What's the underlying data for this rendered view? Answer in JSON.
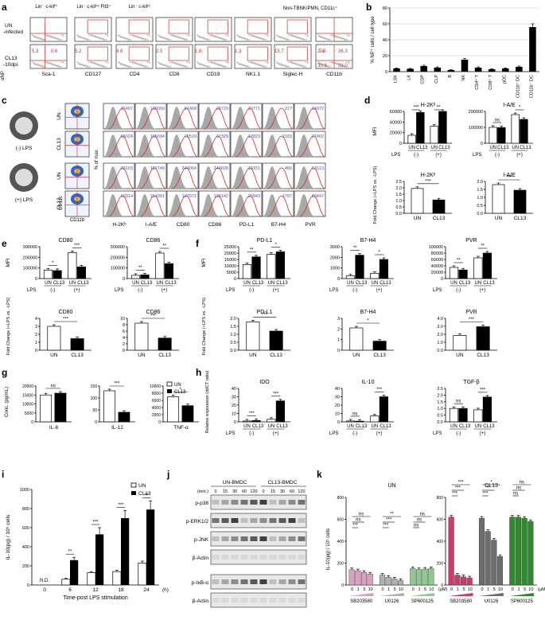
{
  "panel_labels": [
    "a",
    "b",
    "c",
    "d",
    "e",
    "f",
    "g",
    "h",
    "i",
    "j",
    "k"
  ],
  "colors": {
    "accent_red": "#d42a1e",
    "blue_num": "#4a4fb5",
    "hist_fill": "#a8a8a8",
    "k_un": [
      "#d9a0bf",
      "#b0b0b0",
      "#8fc98f"
    ],
    "k_cl13": [
      "#cc3b6e",
      "#6d6d6d",
      "#2f8a2f"
    ]
  },
  "panel_a": {
    "headers": [
      "Lin⁻ c-kitʰⁱ",
      "Lin⁻ c-kitⁱⁿᵗ Flt3⁺",
      "Lin⁻ c-kitˡᵒ",
      "Non-TBNK/PMN, CD11c⁺"
    ],
    "row_labels": [
      "UN -infected",
      "CL13 -10dpi."
    ],
    "yaxis": "αNP",
    "xaxes": [
      "Sca-1",
      "CD127",
      "CD4",
      "CD8",
      "CD19",
      "NK1.1",
      "Siglec-H",
      "CD11b"
    ],
    "cl13_numbers": [
      [
        "5.3",
        "0.6"
      ],
      [
        "5.2"
      ],
      [
        "4.8"
      ],
      [
        "2.5"
      ],
      [
        "1.8"
      ],
      [
        "1.3"
      ],
      [
        "15.7"
      ],
      [
        "7.3"
      ],
      [
        "2.4",
        "36.3",
        "30.3",
        "31.0"
      ]
    ]
  },
  "panel_b": {
    "ylabel": "% NP⁺ cells / cell type",
    "categories": [
      "LSK",
      "LK",
      "CDP",
      "CLP",
      "B",
      "NK",
      "CD4⁺ T",
      "CD8⁺ T",
      "pDC",
      "CD11b⁺ DC",
      "CD11b⁻ DC"
    ],
    "values": [
      4,
      3.5,
      7,
      5,
      2,
      15,
      5,
      3,
      4,
      6,
      56
    ],
    "errors": [
      0.5,
      0.5,
      1,
      1,
      0.5,
      1.5,
      1,
      0.5,
      0.5,
      1,
      4
    ],
    "yticks": [
      "0",
      "20",
      "40",
      "60",
      "80"
    ],
    "ylim": [
      0,
      80
    ]
  },
  "panel_c": {
    "conditions": [
      "(-) LPS",
      "(+) LPS"
    ],
    "rows": [
      "UN",
      "CL13",
      "UN",
      "CL13"
    ],
    "axes": {
      "y": "CD11c",
      "x": "CD11b",
      "hist_y": "% of max."
    },
    "markers": [
      "H-2Kᵇ",
      "I-A/E",
      "CD80",
      "CD86",
      "PD-L1",
      "B7-H4",
      "PVR"
    ],
    "mfi": [
      [
        "16497",
        "108059",
        "81468",
        "28729",
        "10771",
        "227",
        "34972"
      ],
      [
        "58024",
        "105694",
        "75519",
        "37329",
        "17823",
        "2183",
        "27402"
      ],
      [
        "33103",
        "187749",
        "244064",
        "244828",
        "19151",
        "480",
        "63113"
      ],
      [
        "60314",
        "154991",
        "107971",
        "138142",
        "20843",
        "1797",
        "80447"
      ]
    ]
  },
  "bar_panels": {
    "MFI": "MFI",
    "FC": "Fold Change (+LPS vs. -LPS)",
    "UN": "UN",
    "CL13": "CL13",
    "LPS": "LPS",
    "neg": "(-)",
    "pos": "(+)"
  },
  "panel_d": {
    "mfi_charts": [
      {
        "title": "H-2Kᵇ",
        "yticks": [
          "0",
          "20000",
          "40000",
          "60000"
        ],
        "ymax": 60000,
        "values": [
          15000,
          58000,
          32000,
          60000
        ],
        "sig": [
          "***",
          "**"
        ]
      },
      {
        "title": "I-A/E",
        "yticks": [
          "0",
          "100000",
          "200000"
        ],
        "ymax": 200000,
        "values": [
          100000,
          98000,
          180000,
          150000
        ],
        "sig": [
          "ns",
          "*"
        ]
      }
    ],
    "fc_charts": [
      {
        "title": "H-2Kᵇ",
        "yticks": [
          "0.0",
          "0.5",
          "1.0",
          "1.5",
          "2.0",
          "2.5"
        ],
        "ymax": 2.5,
        "values": [
          1.95,
          1.05
        ],
        "sig": "***"
      },
      {
        "title": "I-A/E",
        "yticks": [
          "0.0",
          "0.5",
          "1.0",
          "1.5",
          "2.0"
        ],
        "ymax": 2.0,
        "values": [
          1.8,
          1.45
        ],
        "sig": "***"
      }
    ]
  },
  "panel_e": {
    "mfi_charts": [
      {
        "title": "CD80",
        "yticks": [
          "0",
          "100000",
          "200000",
          "300000"
        ],
        "ymax": 300000,
        "values": [
          80000,
          75000,
          245000,
          110000
        ],
        "sig": [
          "*",
          "***"
        ]
      },
      {
        "title": "CD86",
        "yticks": [
          "0",
          "100000",
          "200000",
          "300000"
        ],
        "ymax": 300000,
        "values": [
          30000,
          35000,
          240000,
          140000
        ],
        "sig": [
          "**",
          "**"
        ]
      }
    ],
    "fc_charts": [
      {
        "title": "CD80",
        "yticks": [
          "0",
          "1",
          "2",
          "3",
          "4"
        ],
        "ymax": 4,
        "values": [
          3.0,
          1.45
        ],
        "sig": "***"
      },
      {
        "title": "CD86",
        "yticks": [
          "0",
          "2",
          "4",
          "6",
          "8",
          "10"
        ],
        "ymax": 10,
        "values": [
          8.5,
          3.8
        ],
        "sig": "***"
      }
    ]
  },
  "panel_f": {
    "mfi_charts": [
      {
        "title": "PD-L1",
        "yticks": [
          "0",
          "5000",
          "10000",
          "15000",
          "20000",
          "25000"
        ],
        "ymax": 25000,
        "values": [
          11000,
          17000,
          19000,
          21000
        ],
        "sig": [
          "**",
          "*"
        ]
      },
      {
        "title": "B7-H4",
        "yticks": [
          "0",
          "1000",
          "2000",
          "3000"
        ],
        "ymax": 3000,
        "values": [
          250,
          2200,
          500,
          1800
        ],
        "sig": [
          "**",
          "*"
        ]
      },
      {
        "title": "PVR",
        "yticks": [
          "0",
          "20000",
          "40000",
          "60000",
          "80000",
          "100000"
        ],
        "ymax": 100000,
        "values": [
          35000,
          27000,
          65000,
          80000
        ],
        "sig": [
          "**",
          "**"
        ]
      }
    ],
    "fc_charts": [
      {
        "title": "PD-L1",
        "yticks": [
          "0.0",
          "0.5",
          "1.0",
          "1.5",
          "2.0"
        ],
        "ymax": 2.0,
        "values": [
          1.78,
          1.2
        ],
        "sig": "***"
      },
      {
        "title": "B7-H4",
        "yticks": [
          "0",
          "1",
          "2",
          "3"
        ],
        "ymax": 3,
        "values": [
          2.1,
          0.85
        ],
        "sig": "*"
      },
      {
        "title": "PVR",
        "yticks": [
          "0.0",
          "1.0",
          "2.0",
          "3.0",
          "4.0"
        ],
        "ymax": 4,
        "values": [
          1.85,
          2.95
        ],
        "sig": "***"
      }
    ]
  },
  "panel_g": {
    "ylabel": "Conc. (pg/mL)",
    "legend": [
      "UN",
      "CL13"
    ],
    "charts": [
      {
        "xlabel": "IL-6",
        "yticks": [
          "0",
          "5000",
          "10000",
          "15000",
          "20000"
        ],
        "ymax": 20000,
        "values": [
          15000,
          16000
        ],
        "sig": "ns"
      },
      {
        "xlabel": "IL-12",
        "yticks": [
          "0",
          "50",
          "100",
          "150"
        ],
        "ymax": 150,
        "values": [
          130,
          40
        ],
        "sig": "***"
      },
      {
        "xlabel": "TNF-α",
        "yticks": [
          "0",
          "2000",
          "4000",
          "6000",
          "8000",
          "10000"
        ],
        "ymax": 10000,
        "values": [
          7000,
          4500
        ],
        "sig": "*"
      }
    ]
  },
  "panel_h": {
    "ylabel": "Relative expression (ddCT ratio)",
    "charts": [
      {
        "title": "IDO",
        "yticks": [
          "0",
          "10",
          "20",
          "30",
          "40"
        ],
        "ymax": 40,
        "values": [
          1,
          1.5,
          3,
          25
        ],
        "sig": [
          "***",
          "***"
        ]
      },
      {
        "title": "IL-10",
        "yticks": [
          "0",
          "10",
          "20",
          "30",
          "40"
        ],
        "ymax": 40,
        "values": [
          1,
          0.8,
          7,
          30
        ],
        "sig": [
          "ns",
          "***"
        ]
      },
      {
        "title": "TGF-β",
        "yticks": [
          "0.0",
          "0.5",
          "1.0",
          "1.5",
          "2.0",
          "2.5"
        ],
        "ymax": 2.5,
        "values": [
          1.0,
          1.0,
          0.9,
          1.85
        ],
        "sig": [
          "ns",
          "***"
        ]
      }
    ]
  },
  "panel_i": {
    "ylabel": "IL-10(pg) / 10⁵ cells",
    "xlabel": "Time-post LPS stimulation",
    "unit": "(h)",
    "legend": [
      "UN",
      "CL13"
    ],
    "categories": [
      "0",
      "6",
      "12",
      "18",
      "24"
    ],
    "un_values": [
      0,
      60,
      130,
      140,
      230
    ],
    "cl13_values": [
      0,
      260,
      530,
      700,
      790
    ],
    "un_err": [
      0,
      10,
      10,
      15,
      20
    ],
    "cl13_err": [
      0,
      30,
      70,
      80,
      90
    ],
    "yticks": [
      "0",
      "200",
      "400",
      "600",
      "800",
      "1000"
    ],
    "ymax": 1000,
    "sig": [
      "N.D.",
      "**",
      "***",
      "***",
      "**"
    ]
  },
  "panel_j": {
    "groups": [
      "UN-BMDC",
      "CL13-BMDC"
    ],
    "min_label": "(min.)",
    "times": [
      "0",
      "15",
      "30",
      "60",
      "120",
      "0",
      "15",
      "30",
      "60",
      "120"
    ],
    "blots": [
      "p-p38",
      "p-ERK1/2",
      "p-JNK",
      "β-Actin",
      "p-IκB-α",
      "β-Actin"
    ]
  },
  "panel_k": {
    "ylabel": "IL-10(pg) / 10⁵ cells",
    "doses": [
      "0",
      "1",
      "5",
      "10"
    ],
    "dose_unit": "(μM)",
    "inhibitors": [
      "SB203580",
      "U0126",
      "SP600125"
    ],
    "charts": [
      {
        "title": "UN",
        "values": [
          [
            140,
            130,
            115,
            100
          ],
          [
            90,
            70,
            55,
            40
          ],
          [
            150,
            140,
            145,
            150
          ]
        ],
        "sig": [
          "***",
          "ns",
          "ns",
          "***",
          "***",
          "**",
          "ns",
          "ns",
          "ns"
        ]
      },
      {
        "title": "CL13",
        "values": [
          [
            620,
            90,
            75,
            65
          ],
          [
            610,
            490,
            410,
            260
          ],
          [
            620,
            620,
            610,
            580
          ]
        ],
        "sig": [
          "***",
          "***",
          "***",
          "***",
          "**",
          "*",
          "ns",
          "ns",
          "ns"
        ]
      }
    ],
    "yticks": [
      "0",
      "200",
      "400",
      "600",
      "800"
    ],
    "ymax": 800
  }
}
